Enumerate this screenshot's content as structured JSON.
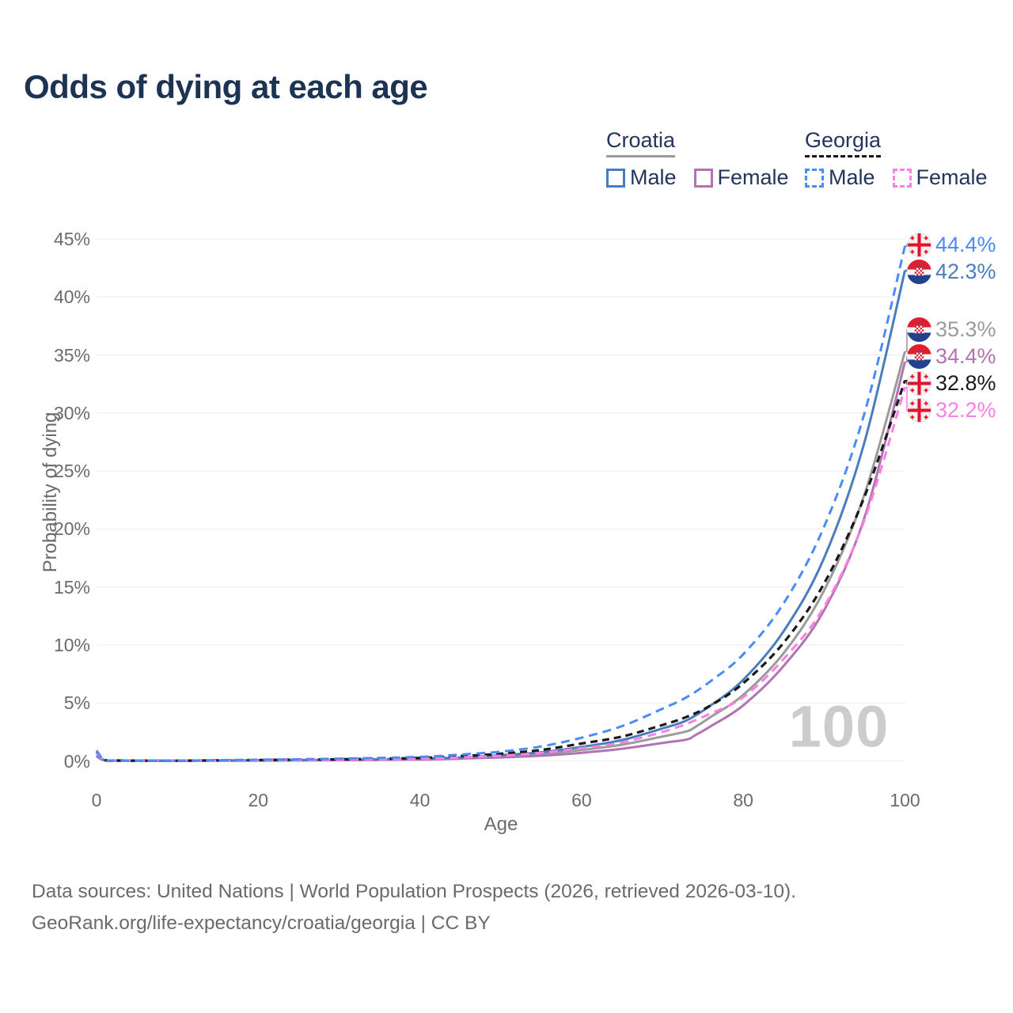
{
  "title": "Odds of dying at each age",
  "watermark_label": "100",
  "colors": {
    "title_text": "#1d3354",
    "legend_text": "#22355c",
    "axis_text": "#6b6b6b",
    "gridline": "#ebebf0",
    "watermark": "#cccccc",
    "croatia_underline": "#9a9a9a",
    "georgia_underline": "#141414",
    "croatia_male": "#4a7dbd",
    "croatia_female": "#b273b3",
    "croatia_both": "#9b9b9b",
    "georgia_male": "#4a8cf7",
    "georgia_female": "#fb80e3",
    "georgia_both": "#1a1a1a"
  },
  "legend": {
    "croatia": {
      "label": "Croatia",
      "male_label": "Male",
      "female_label": "Female"
    },
    "georgia": {
      "label": "Georgia",
      "male_label": "Male",
      "female_label": "Female"
    }
  },
  "chart_data": {
    "type": "line",
    "title": "Odds of dying at each age",
    "xlabel": "Age",
    "ylabel": "Probability of dying",
    "xlim": [
      0,
      100
    ],
    "ylim": [
      0,
      45
    ],
    "grid": "horizontal",
    "x_ticks": [
      {
        "value": 0,
        "label": "0"
      },
      {
        "value": 20,
        "label": "20"
      },
      {
        "value": 40,
        "label": "40"
      },
      {
        "value": 60,
        "label": "60"
      },
      {
        "value": 80,
        "label": "80"
      },
      {
        "value": 100,
        "label": "100"
      }
    ],
    "y_ticks": [
      {
        "value": 0,
        "label": "0%"
      },
      {
        "value": 5,
        "label": "5%"
      },
      {
        "value": 10,
        "label": "10%"
      },
      {
        "value": 15,
        "label": "15%"
      },
      {
        "value": 20,
        "label": "20%"
      },
      {
        "value": 25,
        "label": "25%"
      },
      {
        "value": 30,
        "label": "30%"
      },
      {
        "value": 35,
        "label": "35%"
      },
      {
        "value": 40,
        "label": "40%"
      },
      {
        "value": 45,
        "label": "45%"
      }
    ],
    "series": [
      {
        "id": "croatia-both",
        "name": "Croatia",
        "sex": "both",
        "style": "solid",
        "color": "#9b9b9b",
        "dash": "",
        "width": 3,
        "end_label": "35.3%",
        "end_value": 35.3,
        "flag": "croatia",
        "points": [
          [
            0,
            0.45
          ],
          [
            1,
            0.06
          ],
          [
            3,
            0.025
          ],
          [
            10,
            0.015
          ],
          [
            20,
            0.05
          ],
          [
            30,
            0.08
          ],
          [
            40,
            0.16
          ],
          [
            45,
            0.26
          ],
          [
            50,
            0.4
          ],
          [
            55,
            0.6
          ],
          [
            60,
            0.95
          ],
          [
            65,
            1.4
          ],
          [
            70,
            2.1
          ],
          [
            73,
            2.55
          ],
          [
            74,
            2.9
          ],
          [
            76,
            3.8
          ],
          [
            80,
            5.7
          ],
          [
            85,
            9.3
          ],
          [
            90,
            14.7
          ],
          [
            95,
            23.0
          ],
          [
            100,
            35.3
          ]
        ]
      },
      {
        "id": "croatia-female",
        "name": "Croatia",
        "sex": "female",
        "style": "solid",
        "color": "#b273b3",
        "dash": "",
        "width": 3,
        "end_label": "34.4%",
        "end_value": 34.4,
        "flag": "croatia",
        "points": [
          [
            0,
            0.4
          ],
          [
            1,
            0.05
          ],
          [
            3,
            0.02
          ],
          [
            10,
            0.01
          ],
          [
            20,
            0.03
          ],
          [
            30,
            0.06
          ],
          [
            40,
            0.12
          ],
          [
            45,
            0.2
          ],
          [
            50,
            0.3
          ],
          [
            55,
            0.45
          ],
          [
            60,
            0.7
          ],
          [
            65,
            1.05
          ],
          [
            70,
            1.55
          ],
          [
            73,
            1.85
          ],
          [
            74,
            2.2
          ],
          [
            76,
            3.0
          ],
          [
            80,
            4.8
          ],
          [
            85,
            8.2
          ],
          [
            90,
            13.0
          ],
          [
            95,
            21.0
          ],
          [
            100,
            34.4
          ]
        ]
      },
      {
        "id": "croatia-male",
        "name": "Croatia",
        "sex": "male",
        "style": "solid",
        "color": "#4a7dbd",
        "dash": "",
        "width": 3,
        "end_label": "42.3%",
        "end_value": 42.3,
        "flag": "croatia",
        "points": [
          [
            0,
            0.5
          ],
          [
            1,
            0.07
          ],
          [
            3,
            0.03
          ],
          [
            10,
            0.02
          ],
          [
            20,
            0.06
          ],
          [
            30,
            0.1
          ],
          [
            40,
            0.2
          ],
          [
            45,
            0.3
          ],
          [
            50,
            0.5
          ],
          [
            55,
            0.75
          ],
          [
            60,
            1.2
          ],
          [
            65,
            1.8
          ],
          [
            70,
            2.8
          ],
          [
            73,
            3.5
          ],
          [
            76,
            4.8
          ],
          [
            80,
            7.0
          ],
          [
            85,
            11.2
          ],
          [
            90,
            17.5
          ],
          [
            95,
            27.5
          ],
          [
            100,
            42.3
          ]
        ]
      },
      {
        "id": "georgia-both",
        "name": "Georgia",
        "sex": "both",
        "style": "dashed",
        "color": "#1a1a1a",
        "dash": "9 6",
        "width": 3.2,
        "end_label": "32.8%",
        "end_value": 32.8,
        "flag": "georgia",
        "points": [
          [
            0,
            0.8
          ],
          [
            1,
            0.09
          ],
          [
            3,
            0.035
          ],
          [
            10,
            0.025
          ],
          [
            20,
            0.08
          ],
          [
            30,
            0.14
          ],
          [
            40,
            0.26
          ],
          [
            45,
            0.42
          ],
          [
            50,
            0.62
          ],
          [
            55,
            0.95
          ],
          [
            60,
            1.5
          ],
          [
            65,
            2.1
          ],
          [
            70,
            3.1
          ],
          [
            73,
            3.8
          ],
          [
            76,
            4.8
          ],
          [
            80,
            6.7
          ],
          [
            85,
            10.2
          ],
          [
            90,
            15.3
          ],
          [
            95,
            22.8
          ],
          [
            100,
            32.8
          ]
        ]
      },
      {
        "id": "georgia-female",
        "name": "Georgia",
        "sex": "female",
        "style": "dashed",
        "color": "#fb80e3",
        "dash": "11 7",
        "width": 3,
        "end_label": "32.2%",
        "end_value": 32.2,
        "flag": "georgia",
        "points": [
          [
            0,
            0.7
          ],
          [
            1,
            0.08
          ],
          [
            3,
            0.03
          ],
          [
            10,
            0.02
          ],
          [
            20,
            0.06
          ],
          [
            30,
            0.1
          ],
          [
            40,
            0.18
          ],
          [
            45,
            0.3
          ],
          [
            50,
            0.45
          ],
          [
            55,
            0.7
          ],
          [
            60,
            1.1
          ],
          [
            65,
            1.6
          ],
          [
            70,
            2.5
          ],
          [
            73,
            3.2
          ],
          [
            74,
            3.5
          ],
          [
            76,
            4.1
          ],
          [
            80,
            5.5
          ],
          [
            85,
            8.8
          ],
          [
            90,
            13.3
          ],
          [
            95,
            20.8
          ],
          [
            100,
            32.2
          ]
        ]
      },
      {
        "id": "georgia-male",
        "name": "Georgia",
        "sex": "male",
        "style": "dashed",
        "color": "#4a8cf7",
        "dash": "11 7",
        "width": 3,
        "end_label": "44.4%",
        "end_value": 44.4,
        "flag": "georgia",
        "points": [
          [
            0,
            0.9
          ],
          [
            1,
            0.1
          ],
          [
            3,
            0.04
          ],
          [
            10,
            0.03
          ],
          [
            20,
            0.1
          ],
          [
            30,
            0.2
          ],
          [
            40,
            0.35
          ],
          [
            45,
            0.55
          ],
          [
            50,
            0.8
          ],
          [
            55,
            1.25
          ],
          [
            60,
            2.0
          ],
          [
            65,
            3.0
          ],
          [
            70,
            4.5
          ],
          [
            73,
            5.5
          ],
          [
            76,
            6.9
          ],
          [
            80,
            9.2
          ],
          [
            85,
            13.6
          ],
          [
            90,
            20.2
          ],
          [
            95,
            30.0
          ],
          [
            100,
            44.4
          ]
        ]
      }
    ]
  },
  "footer": {
    "line1": "Data sources: United Nations | World Population Prospects (2026, retrieved 2026-03-10).",
    "line2": "GeoRank.org/life-expectancy/croatia/georgia | CC BY"
  }
}
